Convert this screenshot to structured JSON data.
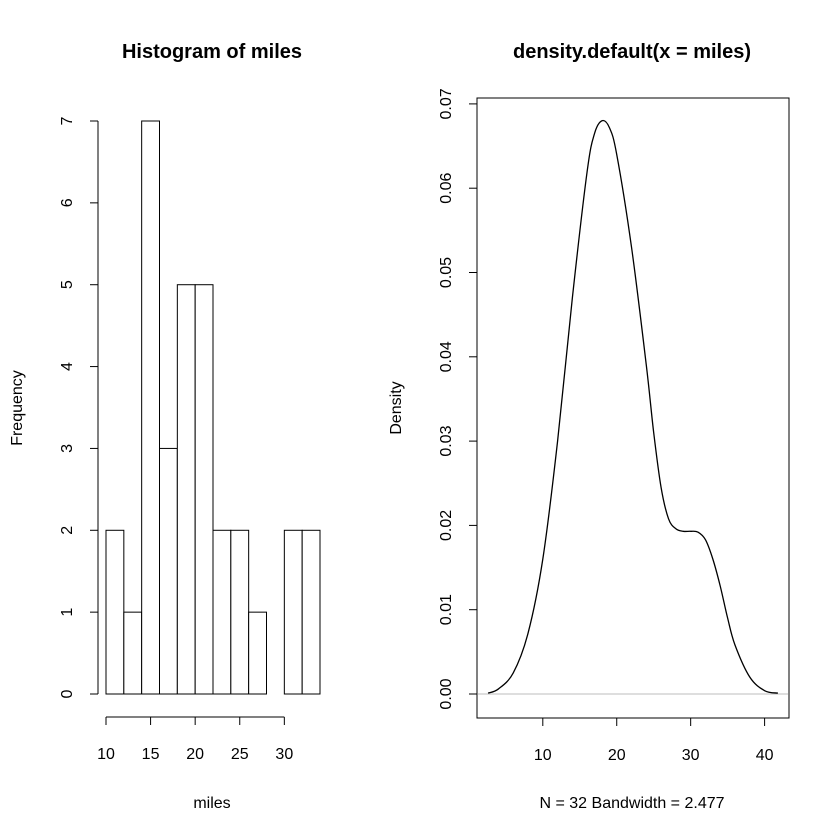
{
  "chart_data": [
    {
      "type": "bar",
      "title": "Histogram of miles",
      "xlabel": "miles",
      "ylabel": "Frequency",
      "bin_edges": [
        10,
        12,
        14,
        16,
        18,
        20,
        22,
        24,
        26,
        28,
        30,
        32,
        34
      ],
      "values": [
        2,
        1,
        7,
        3,
        5,
        5,
        2,
        2,
        1,
        0,
        2,
        2
      ],
      "xticks": [
        10,
        15,
        20,
        25,
        30
      ],
      "yticks": [
        0,
        1,
        2,
        3,
        4,
        5,
        6,
        7
      ],
      "xlim": [
        10,
        34
      ],
      "ylim": [
        0,
        7
      ]
    },
    {
      "type": "line",
      "title": "density.default(x = miles)",
      "xlabel": "N = 32   Bandwidth = 2.477",
      "ylabel": "Density",
      "x": [
        2.6,
        4,
        6,
        8,
        10,
        12,
        14,
        16,
        17,
        18,
        19,
        20,
        22,
        24,
        25,
        26,
        27,
        28,
        29,
        30,
        31,
        32,
        33,
        34,
        35,
        36,
        38,
        40,
        41.8
      ],
      "y": [
        0.0001,
        0.0006,
        0.0025,
        0.0072,
        0.016,
        0.03,
        0.047,
        0.062,
        0.0665,
        0.068,
        0.0672,
        0.064,
        0.053,
        0.039,
        0.031,
        0.0245,
        0.0208,
        0.0196,
        0.0193,
        0.0193,
        0.0192,
        0.0183,
        0.016,
        0.0128,
        0.009,
        0.0058,
        0.002,
        0.0004,
        0.0001
      ],
      "xticks": [
        10,
        20,
        30,
        40
      ],
      "yticks": [
        0.0,
        0.01,
        0.02,
        0.03,
        0.04,
        0.05,
        0.06,
        0.07
      ],
      "ytick_labels": [
        "0.00",
        "0.01",
        "0.02",
        "0.03",
        "0.04",
        "0.05",
        "0.06",
        "0.07"
      ],
      "xlim": [
        1.1,
        43.3
      ],
      "ylim": [
        0,
        0.0707
      ]
    }
  ]
}
